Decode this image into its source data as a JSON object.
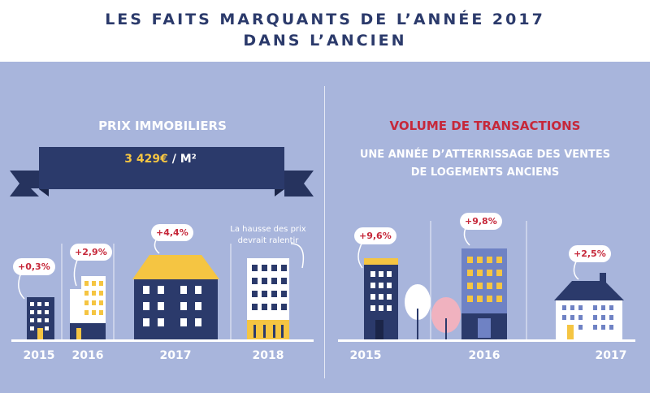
{
  "header": {
    "line1": "LES FAITS MARQUANTS DE L’ANNÉE 2017",
    "line2": "DANS L’ANCIEN"
  },
  "left": {
    "title": "PRIX IMMOBILIERS",
    "price_value": "3 429€",
    "price_unit": " / M²",
    "note": "La hausse des prix devrait ralentir",
    "items": [
      {
        "year": "2015",
        "change": "+0,3%"
      },
      {
        "year": "2016",
        "change": "+2,9%"
      },
      {
        "year": "2017",
        "change": "+4,4%"
      },
      {
        "year": "2018",
        "change": ""
      }
    ]
  },
  "right": {
    "title": "VOLUME DE TRANSACTIONS",
    "subtitle_line1": "UNE ANNÉE D’ATTERRISSAGE DES VENTES",
    "subtitle_line2": "DE LOGEMENTS ANCIENS",
    "items": [
      {
        "year": "2015",
        "change": "+9,6%"
      },
      {
        "year": "2016",
        "change": "+9,8%"
      },
      {
        "year": "2017",
        "change": "+2,5%"
      }
    ]
  },
  "colors": {
    "navy": "#2b3a6b",
    "background": "#a8b5dc",
    "yellow": "#f5c542",
    "red": "#c6283a",
    "light_blue": "#6f82c4",
    "pink": "#f0b2bf"
  }
}
